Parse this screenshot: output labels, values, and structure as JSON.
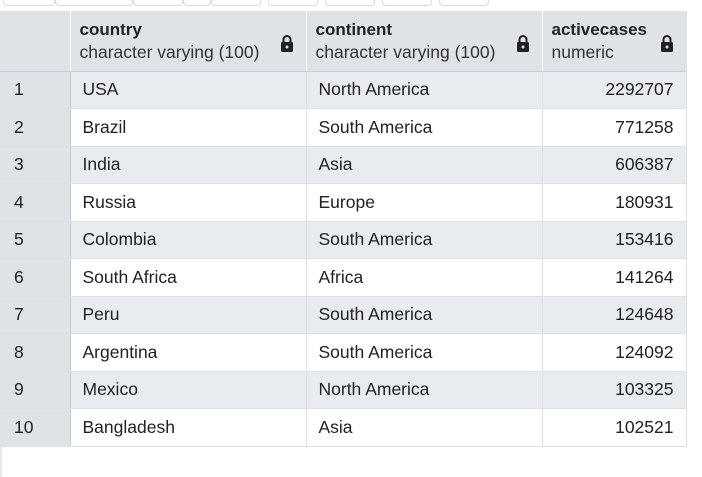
{
  "columns": [
    {
      "name": "country",
      "type": "character varying (100)"
    },
    {
      "name": "continent",
      "type": "character varying (100)"
    },
    {
      "name": "activecases",
      "type": "numeric"
    }
  ],
  "rows": [
    {
      "n": "1",
      "country": "USA",
      "continent": "North America",
      "activecases": "2292707"
    },
    {
      "n": "2",
      "country": "Brazil",
      "continent": "South America",
      "activecases": "771258"
    },
    {
      "n": "3",
      "country": "India",
      "continent": "Asia",
      "activecases": "606387"
    },
    {
      "n": "4",
      "country": "Russia",
      "continent": "Europe",
      "activecases": "180931"
    },
    {
      "n": "5",
      "country": "Colombia",
      "continent": "South America",
      "activecases": "153416"
    },
    {
      "n": "6",
      "country": "South Africa",
      "continent": "Africa",
      "activecases": "141264"
    },
    {
      "n": "7",
      "country": "Peru",
      "continent": "South America",
      "activecases": "124648"
    },
    {
      "n": "8",
      "country": "Argentina",
      "continent": "South America",
      "activecases": "124092"
    },
    {
      "n": "9",
      "country": "Mexico",
      "continent": "North America",
      "activecases": "103325"
    },
    {
      "n": "10",
      "country": "Bangladesh",
      "continent": "Asia",
      "activecases": "102521"
    }
  ],
  "icons": {
    "column_lock": "lock-icon"
  },
  "colors": {
    "header_bg": "#dfe3e8",
    "row_odd_bg": "#e8ebef",
    "row_even_bg": "#ffffff"
  }
}
